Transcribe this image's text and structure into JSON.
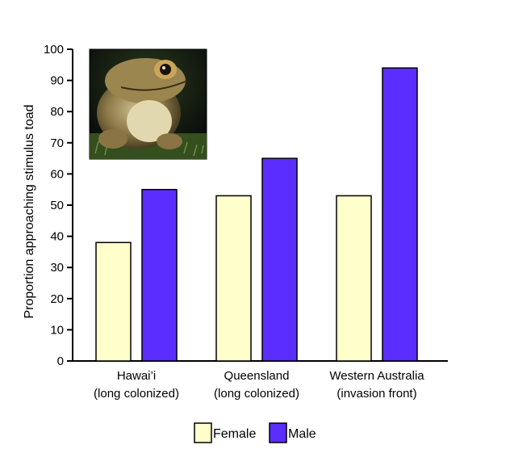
{
  "chart_data": {
    "type": "bar",
    "categories": [
      "Hawai'i\n(long colonized)",
      "Queensland\n(long colonized)",
      "Western Australia\n(invasion front)"
    ],
    "category_labels": [
      [
        "Hawai’i",
        "(long colonized)"
      ],
      [
        "Queensland",
        "(long colonized)"
      ],
      [
        "Western Australia",
        "(invasion front)"
      ]
    ],
    "series": [
      {
        "name": "Female",
        "values": [
          38,
          53,
          53
        ],
        "color": "#ffffcc"
      },
      {
        "name": "Male",
        "values": [
          55,
          65,
          94
        ],
        "color": "#5b2eff"
      }
    ],
    "ylabel": "Proportion approaching stimulus toad",
    "ylim": [
      0,
      100
    ],
    "yticks": [
      0,
      10,
      20,
      30,
      40,
      50,
      60,
      70,
      80,
      90,
      100
    ],
    "grid": false,
    "legend_position": "bottom-center",
    "inset_image": "cane-toad-photo"
  }
}
